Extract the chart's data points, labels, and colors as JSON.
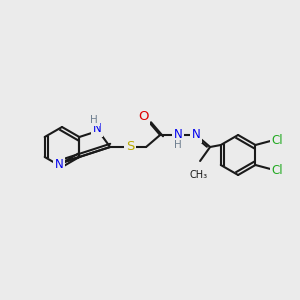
{
  "bg_color": "#ebebeb",
  "bond_color": "#1a1a1a",
  "N_color": "#0000ee",
  "O_color": "#dd0000",
  "S_color": "#bbaa00",
  "Cl_color": "#22aa22",
  "H_color": "#708090",
  "lw": 1.5,
  "fs": 8.5
}
